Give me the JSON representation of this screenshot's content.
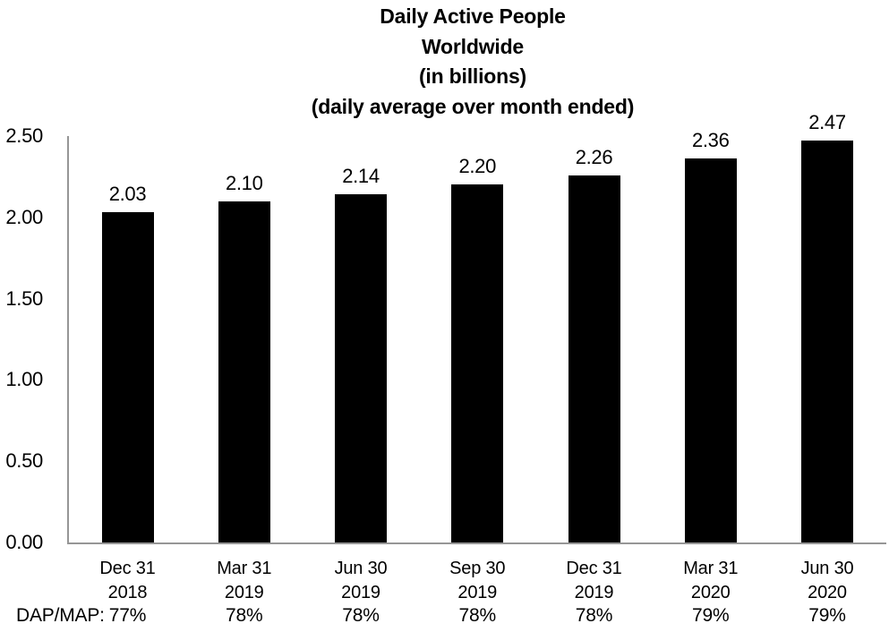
{
  "chart_data": {
    "type": "bar",
    "title_lines": [
      "Daily Active People",
      "Worldwide",
      "(in billions)",
      "(daily average over month ended)"
    ],
    "categories": [
      {
        "line1": "Dec 31",
        "line2": "2018"
      },
      {
        "line1": "Mar 31",
        "line2": "2019"
      },
      {
        "line1": "Jun 30",
        "line2": "2019"
      },
      {
        "line1": "Sep 30",
        "line2": "2019"
      },
      {
        "line1": "Dec 31",
        "line2": "2019"
      },
      {
        "line1": "Mar 31",
        "line2": "2020"
      },
      {
        "line1": "Jun 30",
        "line2": "2020"
      }
    ],
    "values": [
      2.03,
      2.1,
      2.14,
      2.2,
      2.26,
      2.36,
      2.47
    ],
    "value_labels": [
      "2.03",
      "2.10",
      "2.14",
      "2.20",
      "2.26",
      "2.36",
      "2.47"
    ],
    "y_axis": {
      "min": 0,
      "max": 2.5,
      "ticks": [
        {
          "value": 0.0,
          "label": "0.00"
        },
        {
          "value": 0.5,
          "label": "0.50"
        },
        {
          "value": 1.0,
          "label": "1.00"
        },
        {
          "value": 1.5,
          "label": "1.50"
        },
        {
          "value": 2.0,
          "label": "2.00"
        },
        {
          "value": 2.5,
          "label": "2.50"
        }
      ]
    },
    "footer": {
      "label": "DAP/MAP:",
      "values": [
        "77%",
        "78%",
        "78%",
        "78%",
        "78%",
        "79%",
        "79%"
      ]
    },
    "colors": {
      "bar": "#000000",
      "axis": "#969696",
      "text": "#000000",
      "background": "#ffffff"
    },
    "grid": false,
    "legend": "none"
  }
}
